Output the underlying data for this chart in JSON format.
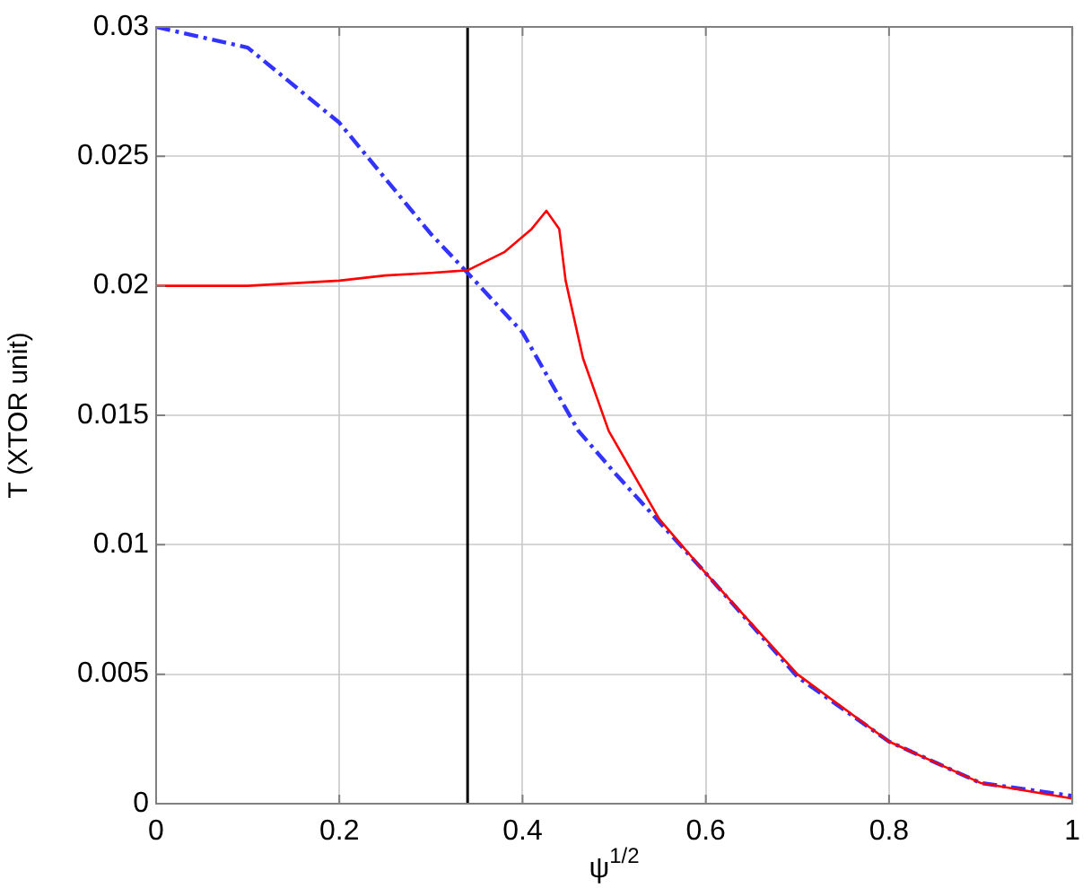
{
  "chart_data": {
    "type": "line",
    "xlabel": "ψ$^{1/2}$",
    "ylabel": "T (XTOR unit)",
    "xlim": [
      0,
      1
    ],
    "ylim": [
      0,
      0.03
    ],
    "xticks": [
      0,
      0.2,
      0.4,
      0.6,
      0.8,
      1
    ],
    "yticks": [
      0,
      0.005,
      0.01,
      0.015,
      0.02,
      0.025,
      0.03
    ],
    "grid": true,
    "legend": false,
    "marker": "none",
    "ref_lines": [
      {
        "axis": "x",
        "value": 0.34,
        "color": "#000000",
        "line_style": "solid"
      }
    ],
    "series": [
      {
        "color": "#ff0000",
        "line_style": "solid",
        "x": [
          0,
          0.1,
          0.2,
          0.25,
          0.3,
          0.34,
          0.38,
          0.41,
          0.426,
          0.44,
          0.447,
          0.466,
          0.494,
          0.549,
          0.6,
          0.7,
          0.8,
          0.9,
          1
        ],
        "values": [
          0.02,
          0.02,
          0.0202,
          0.0204,
          0.0205,
          0.0206,
          0.0213,
          0.0222,
          0.0229,
          0.0222,
          0.0202,
          0.0172,
          0.0144,
          0.011,
          0.0089,
          0.005,
          0.0024,
          0.0008,
          0.0002
        ]
      },
      {
        "color": "#3333ff",
        "line_style": "dashed",
        "x": [
          0,
          0.1,
          0.2,
          0.3,
          0.34,
          0.4,
          0.461,
          0.5,
          0.6,
          0.7,
          0.8,
          0.9,
          1
        ],
        "values": [
          0.03,
          0.0292,
          0.0263,
          0.022,
          0.0205,
          0.0182,
          0.0144,
          0.0128,
          0.0089,
          0.0049,
          0.0024,
          0.0008,
          0.0003
        ]
      }
    ]
  }
}
